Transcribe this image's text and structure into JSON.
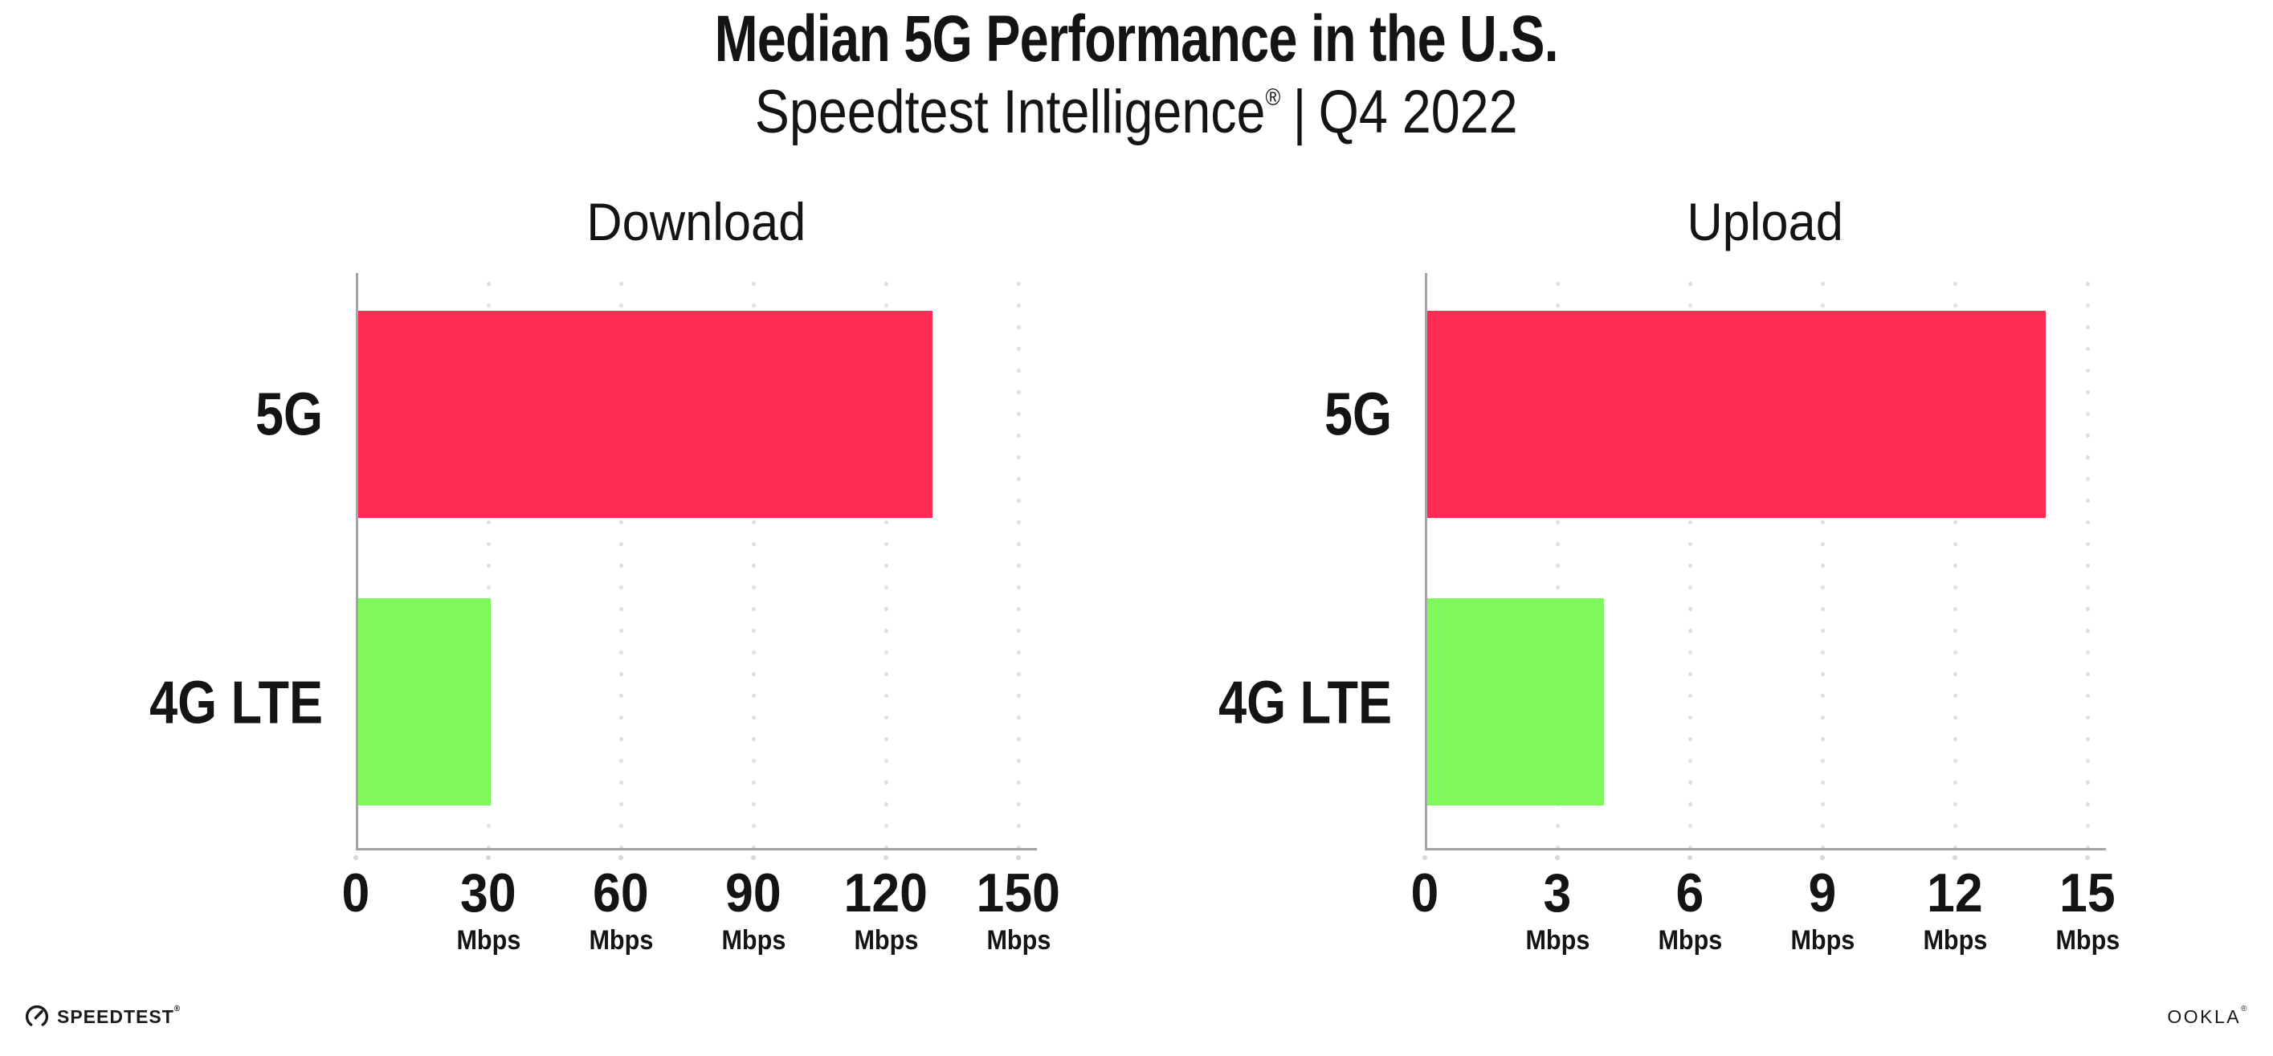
{
  "header": {
    "title": "Median 5G Performance in the U.S.",
    "subtitle_brand": "Speedtest Intelligence",
    "subtitle_reg": "®",
    "subtitle_sep": "|",
    "subtitle_period": "Q4 2022"
  },
  "colors": {
    "bar_5g": "#FF2D55",
    "bar_4g_lte": "#7FF95C",
    "axis": "#a2a2a8",
    "grid": "#dfdfe9",
    "tick_dot": "#d7d7e1",
    "text": "#141414",
    "background": "#ffffff"
  },
  "chart_data": [
    {
      "type": "bar",
      "orientation": "horizontal",
      "title": "Download",
      "categories": [
        "5G",
        "4G LTE"
      ],
      "values": [
        130,
        30
      ],
      "unit": "Mbps",
      "xlim": [
        0,
        150
      ],
      "xticks": [
        0,
        30,
        60,
        90,
        120,
        150
      ],
      "bar_colors": [
        "#FF2D55",
        "#7FF95C"
      ],
      "grid": "dotted-vertical",
      "legend": "none"
    },
    {
      "type": "bar",
      "orientation": "horizontal",
      "title": "Upload",
      "categories": [
        "5G",
        "4G LTE"
      ],
      "values": [
        14,
        4
      ],
      "unit": "Mbps",
      "xlim": [
        0,
        15
      ],
      "xticks": [
        0,
        3,
        6,
        9,
        12,
        15
      ],
      "bar_colors": [
        "#FF2D55",
        "#7FF95C"
      ],
      "grid": "dotted-vertical",
      "legend": "none"
    }
  ],
  "footer": {
    "speedtest_logo_text": "SPEEDTEST",
    "speedtest_reg": "®",
    "ookla_logo_text": "OOKLA",
    "ookla_reg": "®"
  }
}
